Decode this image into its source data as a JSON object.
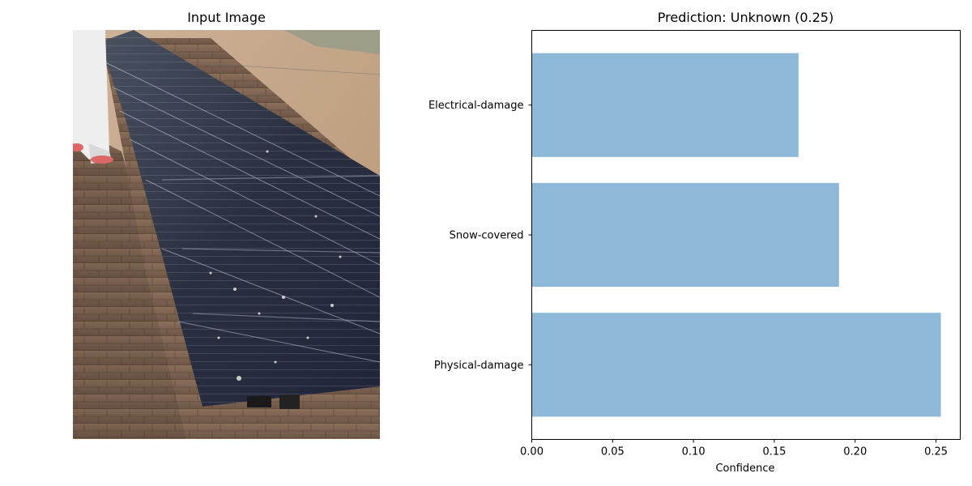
{
  "left_panel": {
    "title": "Input Image"
  },
  "chart_data": {
    "type": "bar",
    "orientation": "horizontal",
    "title": "Prediction: Unknown (0.25)",
    "categories": [
      "Physical-damage",
      "Snow-covered",
      "Electrical-damage"
    ],
    "values": [
      0.253,
      0.19,
      0.165
    ],
    "xlabel": "Confidence",
    "ylabel": "",
    "xlim": [
      0,
      0.265
    ],
    "xticks": [
      0.0,
      0.05,
      0.1,
      0.15,
      0.2,
      0.25
    ],
    "xtick_labels": [
      "0.00",
      "0.05",
      "0.10",
      "0.15",
      "0.20",
      "0.25"
    ],
    "bar_color": "#8db8d8",
    "grid": false
  }
}
